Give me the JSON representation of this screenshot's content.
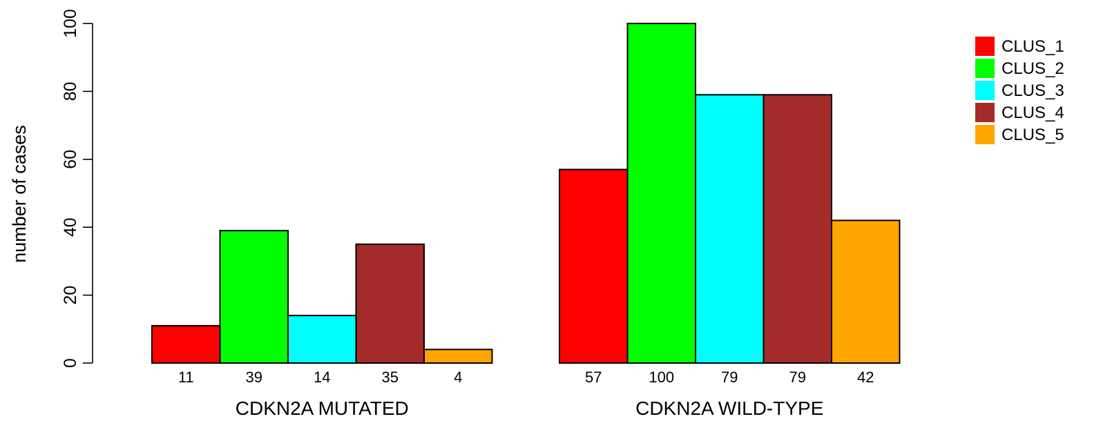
{
  "chart_data": {
    "type": "bar",
    "ylabel": "number of cases",
    "ylim": [
      0,
      100
    ],
    "y_ticks": [
      0,
      20,
      40,
      60,
      80,
      100
    ],
    "grid": false,
    "legend_placement": "top-right, outside plot",
    "groups": [
      {
        "label": "CDKN2A MUTATED",
        "values": [
          11,
          39,
          14,
          35,
          4
        ]
      },
      {
        "label": "CDKN2A WILD-TYPE",
        "values": [
          57,
          100,
          79,
          79,
          42
        ]
      }
    ],
    "series": [
      {
        "name": "CLUS_1",
        "color": "#ff0000"
      },
      {
        "name": "CLUS_2",
        "color": "#00ff00"
      },
      {
        "name": "CLUS_3",
        "color": "#00ffff"
      },
      {
        "name": "CLUS_4",
        "color": "#a52a2a"
      },
      {
        "name": "CLUS_5",
        "color": "#ffa500"
      }
    ]
  }
}
